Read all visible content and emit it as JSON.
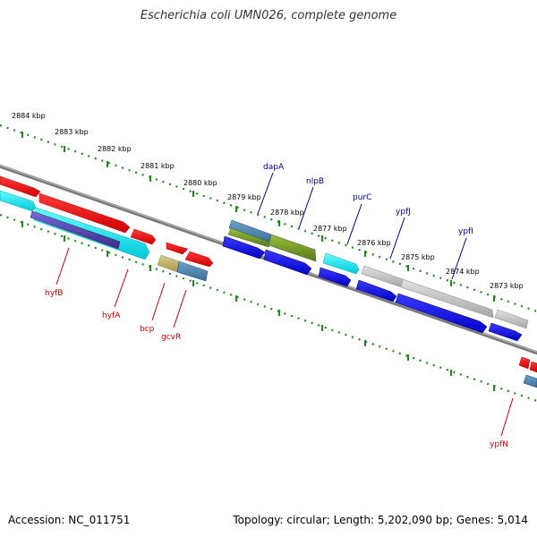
{
  "title": "Escherichia coli UMN026, complete genome",
  "footer": {
    "accession": "Accession: NC_011751",
    "summary": "Topology: circular; Length: 5,202,090 bp; Genes: 5,014"
  },
  "colors": {
    "backbone": "#7a7a7a",
    "tick": "#1e8a1e",
    "top_label": "#00008b",
    "bottom_label": "#cc0000"
  },
  "kbp_labels": [
    "2884 kbp",
    "2883 kbp",
    "2882 kbp",
    "2881 kbp",
    "2880 kbp",
    "2879 kbp",
    "2878 kbp",
    "2877 kbp",
    "2876 kbp",
    "2875 kbp",
    "2874 kbp",
    "2873 kbp"
  ],
  "top_genes": [
    "dapA",
    "nlpB",
    "purC",
    "ypfJ",
    "ypfI"
  ],
  "bottom_genes": [
    "hyfB",
    "hyfA",
    "bcp",
    "gcvR",
    "ypfN"
  ]
}
